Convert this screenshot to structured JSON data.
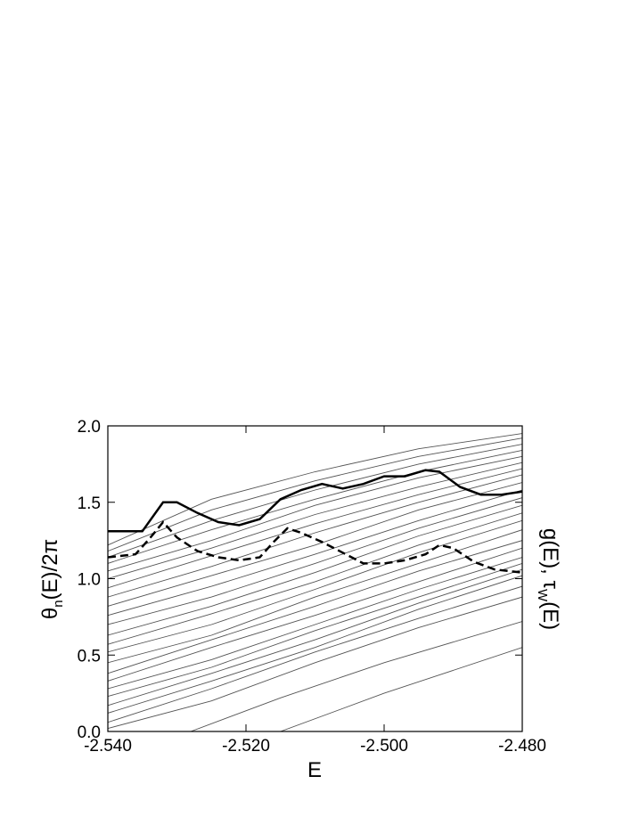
{
  "chart_data": {
    "type": "line",
    "x_label": "E",
    "y_label_parts": [
      "θ",
      "n",
      "(E)/2π"
    ],
    "y2_label_parts": [
      "g(E), τ",
      "W",
      "(E)"
    ],
    "xlim": [
      -2.54,
      -2.48
    ],
    "xticks": [
      {
        "value": -2.54,
        "label": "-2.540"
      },
      {
        "value": -2.52,
        "label": "-2.520"
      },
      {
        "value": -2.5,
        "label": "-2.500"
      },
      {
        "value": -2.48,
        "label": "-2.480"
      }
    ],
    "ylim": [
      0.0,
      2.0
    ],
    "yticks": [
      {
        "value": 0,
        "label": "0.0"
      },
      {
        "value": 0.5,
        "label": "0.5"
      },
      {
        "value": 1,
        "label": "1.0"
      },
      {
        "value": 1.5,
        "label": "1.5"
      },
      {
        "value": 2,
        "label": "2.0"
      }
    ],
    "series": [
      {
        "color": "#555555",
        "x": [
          -2.54,
          -2.525,
          -2.51,
          -2.495,
          -2.48
        ],
        "values": [
          0.02,
          0.2,
          0.45,
          0.68,
          0.88
        ]
      },
      {
        "color": "#555555",
        "x": [
          -2.54,
          -2.525,
          -2.51,
          -2.495,
          -2.48
        ],
        "values": [
          0.06,
          0.28,
          0.52,
          0.74,
          0.95
        ]
      },
      {
        "color": "#555555",
        "x": [
          -2.54,
          -2.525,
          -2.51,
          -2.495,
          -2.48
        ],
        "values": [
          0.12,
          0.33,
          0.55,
          0.8,
          1.02
        ]
      },
      {
        "color": "#555555",
        "x": [
          -2.54,
          -2.525,
          -2.51,
          -2.495,
          -2.48
        ],
        "values": [
          0.17,
          0.38,
          0.6,
          0.84,
          1.06
        ]
      },
      {
        "color": "#555555",
        "x": [
          -2.54,
          -2.525,
          -2.51,
          -2.495,
          -2.48
        ],
        "values": [
          0.23,
          0.42,
          0.66,
          0.88,
          1.1
        ]
      },
      {
        "color": "#555555",
        "x": [
          -2.54,
          -2.525,
          -2.51,
          -2.495,
          -2.48
        ],
        "values": [
          0.28,
          0.47,
          0.7,
          0.93,
          1.14
        ]
      },
      {
        "color": "#555555",
        "x": [
          -2.54,
          -2.525,
          -2.51,
          -2.495,
          -2.48
        ],
        "values": [
          0.33,
          0.55,
          0.76,
          0.98,
          1.2
        ]
      },
      {
        "color": "#555555",
        "x": [
          -2.54,
          -2.525,
          -2.51,
          -2.495,
          -2.48
        ],
        "values": [
          0.38,
          0.6,
          0.82,
          1.05,
          1.25
        ]
      },
      {
        "color": "#555555",
        "x": [
          -2.54,
          -2.525,
          -2.51,
          -2.495,
          -2.48
        ],
        "values": [
          0.45,
          0.63,
          0.88,
          1.1,
          1.32
        ]
      },
      {
        "color": "#555555",
        "x": [
          -2.54,
          -2.525,
          -2.51,
          -2.495,
          -2.48
        ],
        "values": [
          0.52,
          0.7,
          0.93,
          1.17,
          1.38
        ]
      },
      {
        "color": "#555555",
        "x": [
          -2.54,
          -2.525,
          -2.51,
          -2.495,
          -2.48
        ],
        "values": [
          0.57,
          0.77,
          0.98,
          1.22,
          1.43
        ]
      },
      {
        "color": "#555555",
        "x": [
          -2.54,
          -2.525,
          -2.51,
          -2.495,
          -2.48
        ],
        "values": [
          0.63,
          0.82,
          1.04,
          1.28,
          1.48
        ]
      },
      {
        "color": "#555555",
        "x": [
          -2.54,
          -2.525,
          -2.51,
          -2.495,
          -2.48
        ],
        "values": [
          0.7,
          0.88,
          1.1,
          1.33,
          1.53
        ]
      },
      {
        "color": "#555555",
        "x": [
          -2.54,
          -2.525,
          -2.51,
          -2.495,
          -2.48
        ],
        "values": [
          0.76,
          0.95,
          1.16,
          1.38,
          1.58
        ]
      },
      {
        "color": "#555555",
        "x": [
          -2.54,
          -2.525,
          -2.51,
          -2.495,
          -2.48
        ],
        "values": [
          0.82,
          1.02,
          1.22,
          1.45,
          1.63
        ]
      },
      {
        "color": "#555555",
        "x": [
          -2.54,
          -2.525,
          -2.51,
          -2.495,
          -2.48
        ],
        "values": [
          0.88,
          1.08,
          1.3,
          1.5,
          1.68
        ]
      },
      {
        "color": "#555555",
        "x": [
          -2.54,
          -2.525,
          -2.51,
          -2.495,
          -2.48
        ],
        "values": [
          0.94,
          1.15,
          1.36,
          1.55,
          1.72
        ]
      },
      {
        "color": "#555555",
        "x": [
          -2.54,
          -2.525,
          -2.51,
          -2.495,
          -2.48
        ],
        "values": [
          1.0,
          1.2,
          1.42,
          1.6,
          1.76
        ]
      },
      {
        "color": "#555555",
        "x": [
          -2.54,
          -2.525,
          -2.51,
          -2.495,
          -2.48
        ],
        "values": [
          1.05,
          1.25,
          1.48,
          1.66,
          1.8
        ]
      },
      {
        "color": "#555555",
        "x": [
          -2.54,
          -2.525,
          -2.51,
          -2.495,
          -2.48
        ],
        "values": [
          1.1,
          1.32,
          1.52,
          1.7,
          1.84
        ]
      },
      {
        "color": "#555555",
        "x": [
          -2.54,
          -2.525,
          -2.51,
          -2.495,
          -2.48
        ],
        "values": [
          1.14,
          1.38,
          1.58,
          1.75,
          1.88
        ]
      },
      {
        "color": "#555555",
        "x": [
          -2.54,
          -2.525,
          -2.51,
          -2.495,
          -2.48
        ],
        "values": [
          1.18,
          1.45,
          1.64,
          1.8,
          1.92
        ]
      },
      {
        "color": "#555555",
        "x": [
          -2.54,
          -2.525,
          -2.51,
          -2.495,
          -2.48
        ],
        "values": [
          1.22,
          1.52,
          1.7,
          1.85,
          1.95
        ]
      },
      {
        "color": "#555555",
        "x": [
          -2.528,
          -2.515,
          -2.5,
          -2.48
        ],
        "values": [
          0.0,
          0.22,
          0.45,
          0.72
        ]
      },
      {
        "color": "#555555",
        "x": [
          -2.515,
          -2.5,
          -2.48
        ],
        "values": [
          0.0,
          0.25,
          0.55
        ]
      },
      {
        "color": "#000000",
        "width": 2.5,
        "dash": false,
        "x": [
          -2.54,
          -2.535,
          -2.532,
          -2.53,
          -2.527,
          -2.524,
          -2.521,
          -2.518,
          -2.515,
          -2.512,
          -2.509,
          -2.506,
          -2.503,
          -2.5,
          -2.497,
          -2.494,
          -2.492,
          -2.489,
          -2.486,
          -2.483,
          -2.48
        ],
        "values": [
          1.31,
          1.31,
          1.5,
          1.5,
          1.43,
          1.37,
          1.35,
          1.39,
          1.52,
          1.58,
          1.62,
          1.59,
          1.62,
          1.67,
          1.67,
          1.71,
          1.7,
          1.6,
          1.55,
          1.55,
          1.57
        ]
      },
      {
        "color": "#000000",
        "width": 2.5,
        "dash": true,
        "x": [
          -2.54,
          -2.536,
          -2.534,
          -2.532,
          -2.53,
          -2.527,
          -2.524,
          -2.521,
          -2.518,
          -2.516,
          -2.514,
          -2.512,
          -2.509,
          -2.506,
          -2.503,
          -2.5,
          -2.497,
          -2.494,
          -2.492,
          -2.49,
          -2.487,
          -2.484,
          -2.48
        ],
        "values": [
          1.14,
          1.16,
          1.26,
          1.37,
          1.27,
          1.18,
          1.14,
          1.12,
          1.14,
          1.24,
          1.33,
          1.3,
          1.24,
          1.17,
          1.1,
          1.1,
          1.12,
          1.16,
          1.22,
          1.2,
          1.11,
          1.06,
          1.04
        ]
      }
    ]
  }
}
